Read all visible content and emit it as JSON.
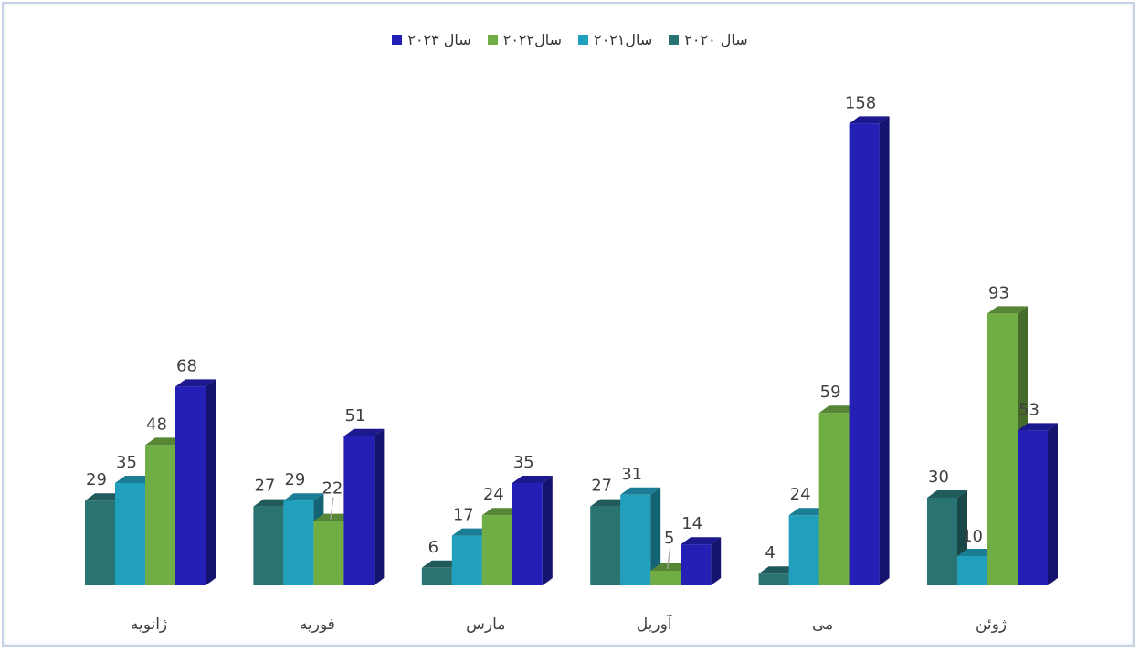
{
  "chart_data": {
    "type": "bar",
    "title": "",
    "xlabel": "",
    "ylabel": "",
    "grid": false,
    "legend_position": "top",
    "ylim": [
      0,
      158
    ],
    "categories": [
      "ژانویه",
      "فوریه",
      "مارس",
      "آوریل",
      "می",
      "ژوئن"
    ],
    "series": [
      {
        "name": "سال ۲۰۲۰",
        "color": "#2a7373",
        "values": [
          29,
          27,
          6,
          27,
          4,
          30
        ]
      },
      {
        "name": "سال۲۰۲۱",
        "color": "#21a0bd",
        "values": [
          35,
          29,
          17,
          31,
          24,
          10
        ]
      },
      {
        "name": "سال۲۰۲۲",
        "color": "#70ad45",
        "values": [
          48,
          22,
          24,
          5,
          59,
          93
        ]
      },
      {
        "name": "سال ۲۰۲۳",
        "color": "#241fb5",
        "values": [
          68,
          51,
          35,
          14,
          158,
          53
        ]
      }
    ]
  }
}
